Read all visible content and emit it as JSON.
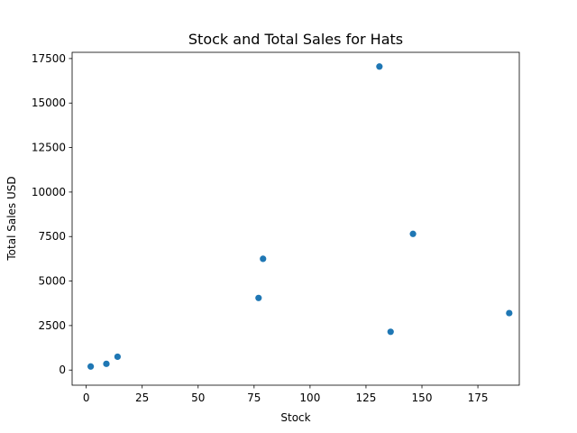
{
  "chart_data": {
    "type": "scatter",
    "title": "Stock and Total Sales for Hats",
    "xlabel": "Stock",
    "ylabel": "Total Sales USD",
    "xlim": [
      -6.3,
      193.5
    ],
    "ylim": [
      -850,
      17850
    ],
    "x_ticks": [
      0,
      25,
      50,
      75,
      100,
      125,
      150,
      175
    ],
    "y_ticks": [
      0,
      2500,
      5000,
      7500,
      10000,
      12500,
      15000,
      17500
    ],
    "grid": false,
    "legend": "none",
    "color": "#1f77b4",
    "points": [
      {
        "x": 2,
        "y": 200
      },
      {
        "x": 9,
        "y": 350
      },
      {
        "x": 14,
        "y": 750
      },
      {
        "x": 77,
        "y": 4050
      },
      {
        "x": 79,
        "y": 6250
      },
      {
        "x": 131,
        "y": 17050
      },
      {
        "x": 136,
        "y": 2150
      },
      {
        "x": 146,
        "y": 7650
      },
      {
        "x": 189,
        "y": 3200
      }
    ]
  }
}
